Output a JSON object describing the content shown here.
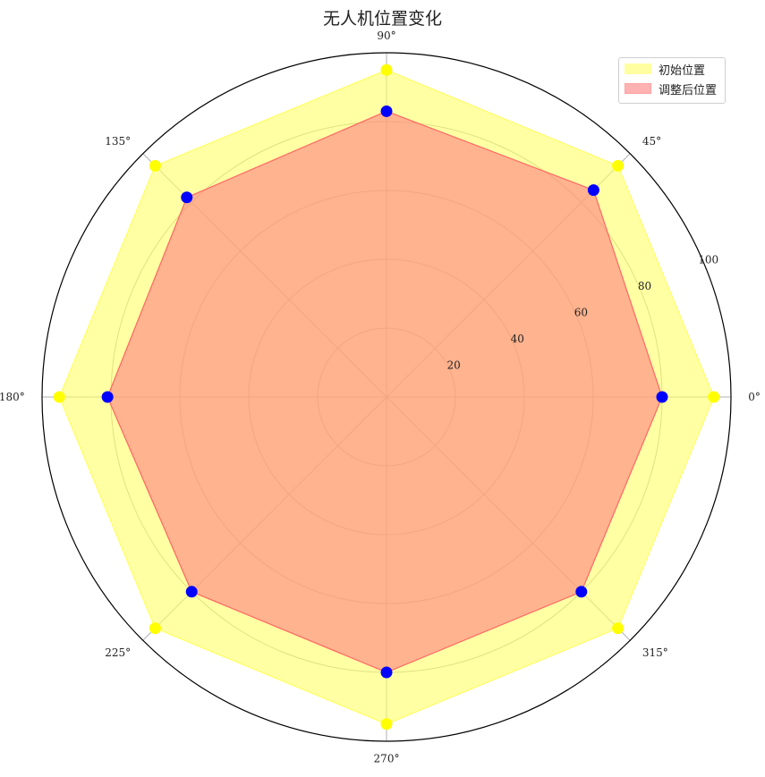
{
  "chart_data": {
    "type": "radar",
    "title": "无人机位置变化",
    "angles_deg": [
      0,
      45,
      90,
      135,
      180,
      225,
      270,
      315
    ],
    "angle_tick_labels": [
      "0°",
      "45°",
      "90°",
      "135°",
      "180°",
      "225°",
      "270°",
      "315°"
    ],
    "radial_ticks": [
      20,
      40,
      60,
      80,
      100
    ],
    "rlim": [
      0,
      100
    ],
    "grid": true,
    "legend_position": "top-right",
    "series": [
      {
        "name": "初始位置",
        "values": [
          95,
          95,
          95,
          95,
          95,
          95,
          95,
          95
        ],
        "fill_color": "#ffff66",
        "point_color": "#ffff00",
        "edge_color": "#ffff66"
      },
      {
        "name": "调整后位置",
        "values": [
          80,
          85,
          83,
          82,
          81,
          80,
          80,
          80
        ],
        "fill_color": "#ff8080",
        "point_color": "#0000ff",
        "edge_color": "#ff6666"
      }
    ]
  }
}
